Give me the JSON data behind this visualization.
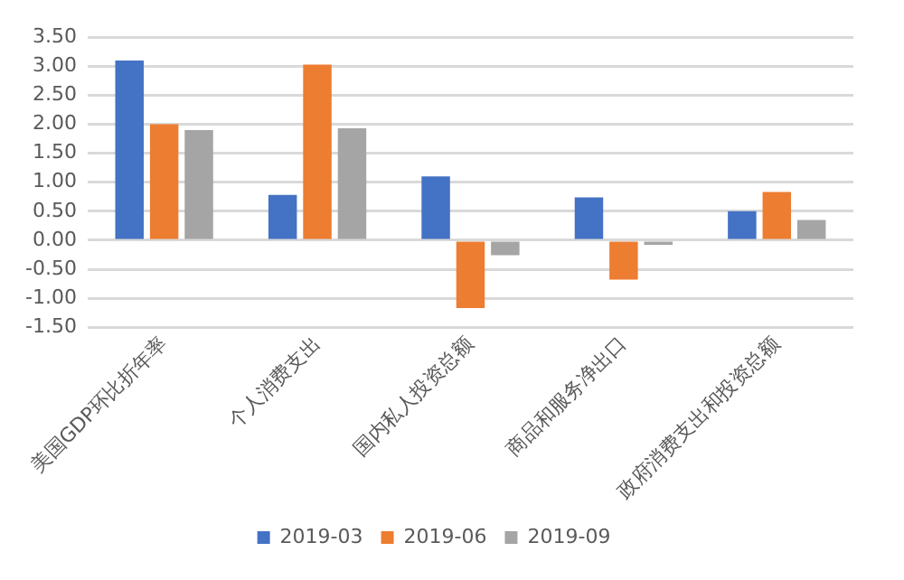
{
  "chart_data": {
    "type": "bar",
    "categories": [
      "美国GDP环比折年率",
      "个人消费支出",
      "国内私人投资总额",
      "商品和服务净出口",
      "政府消费支出和投资总额"
    ],
    "series": [
      {
        "name": "2019-03",
        "color": "#4472c4",
        "values": [
          3.1,
          0.78,
          1.1,
          0.74,
          0.5
        ]
      },
      {
        "name": "2019-06",
        "color": "#ed7d31",
        "values": [
          2.0,
          3.03,
          -1.17,
          -0.68,
          0.83
        ]
      },
      {
        "name": "2019-09",
        "color": "#a5a5a5",
        "values": [
          1.9,
          1.93,
          -0.26,
          -0.08,
          0.35
        ]
      }
    ],
    "ylim": [
      -1.5,
      3.5
    ],
    "yticks": [
      {
        "value": -1.5,
        "label": "-1.50"
      },
      {
        "value": -1,
        "label": "-1.00"
      },
      {
        "value": -0.5,
        "label": "-0.50"
      },
      {
        "value": 0,
        "label": "0.00"
      },
      {
        "value": 0.5,
        "label": "0.50"
      },
      {
        "value": 1,
        "label": "1.00"
      },
      {
        "value": 1.5,
        "label": "1.50"
      },
      {
        "value": 2,
        "label": "2.00"
      },
      {
        "value": 2.5,
        "label": "2.50"
      },
      {
        "value": 3,
        "label": "3.00"
      },
      {
        "value": 3.5,
        "label": "3.50"
      }
    ],
    "grid": "y",
    "legend": "bottom"
  }
}
